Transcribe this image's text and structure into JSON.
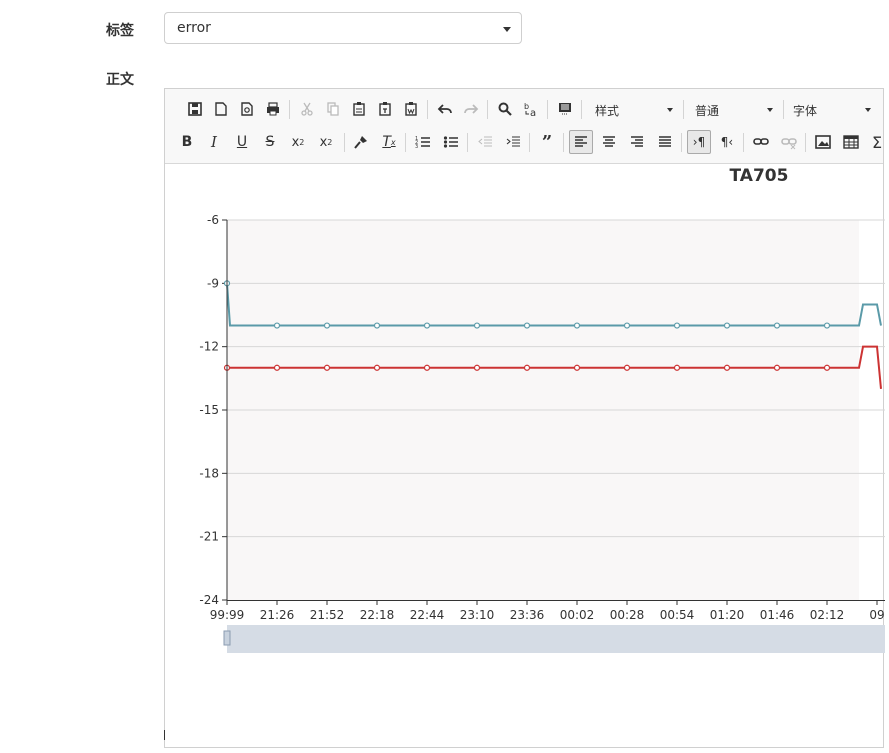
{
  "form": {
    "tag_label": "标签",
    "body_label": "正文",
    "tag_select": {
      "value": "error"
    }
  },
  "toolbar": {
    "styles_combo": "样式",
    "format_combo": "普通",
    "font_combo": "字体"
  },
  "colors": {
    "series_teal": "#5a9aa8",
    "series_red": "#cc3333"
  },
  "chart_data": {
    "type": "line",
    "title": "TA705",
    "ylim": [
      -24,
      -6
    ],
    "yticks": [
      "-6",
      "-9",
      "-12",
      "-15",
      "-18",
      "-21",
      "-24"
    ],
    "categories": [
      "99:99",
      "21:26",
      "21:52",
      "22:18",
      "22:44",
      "23:10",
      "23:36",
      "00:02",
      "00:28",
      "00:54",
      "01:20",
      "01:46",
      "02:12",
      "09"
    ],
    "series": [
      {
        "values": [
          -9,
          -11,
          -11,
          -11,
          -11,
          -11,
          -11,
          -11,
          -11,
          -11,
          -11,
          -11,
          -11,
          -10
        ]
      },
      {
        "values": [
          -13,
          -13,
          -13,
          -13,
          -13,
          -13,
          -13,
          -13,
          -13,
          -13,
          -13,
          -13,
          -13,
          -12
        ]
      }
    ],
    "grid": true,
    "datazoom_slider": true
  }
}
